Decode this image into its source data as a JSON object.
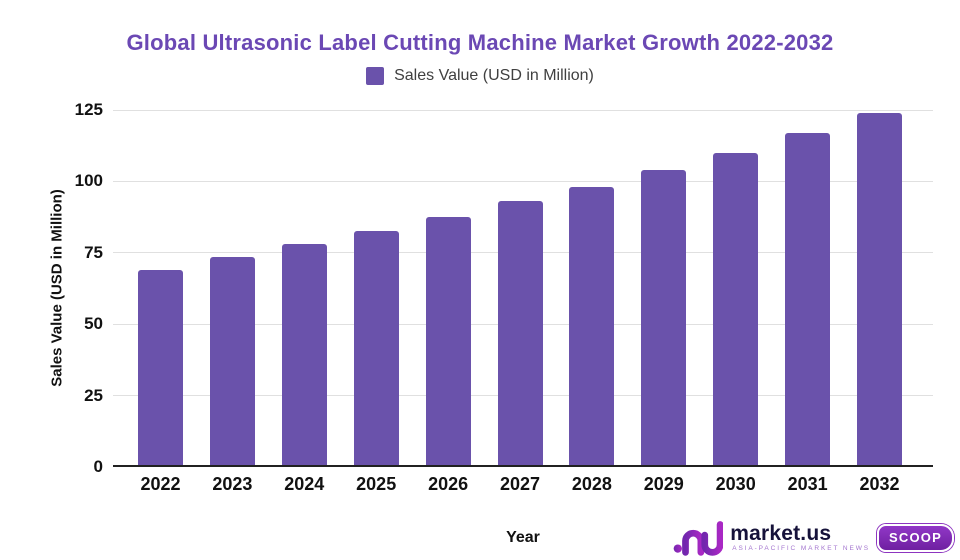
{
  "title": "Global Ultrasonic Label Cutting Machine Market Growth 2022-2032",
  "legend": {
    "label": "Sales Value (USD in Million)"
  },
  "axes": {
    "x_title": "Year",
    "y_title": "Sales Value (USD in Million)"
  },
  "chart_data": {
    "type": "bar",
    "title": "Global Ultrasonic Label Cutting Machine Market Growth 2022-2032",
    "categories": [
      "2022",
      "2023",
      "2024",
      "2025",
      "2026",
      "2027",
      "2028",
      "2029",
      "2030",
      "2031",
      "2032"
    ],
    "series": [
      {
        "name": "Sales Value (USD in Million)",
        "values": [
          69,
          73.5,
          78,
          82.5,
          87.5,
          93,
          98,
          104,
          110,
          117,
          124
        ]
      }
    ],
    "xlabel": "Year",
    "ylabel": "Sales Value (USD in Million)",
    "ylim": [
      0,
      125
    ],
    "yticks": [
      0,
      25,
      50,
      75,
      100,
      125
    ],
    "grid": true,
    "legend_position": "top"
  },
  "colors": {
    "bar": "#6a52ab",
    "title": "#6b48b4",
    "grid": "#e0e0e0",
    "axis_line": "#212121",
    "tick_text": "#111111"
  },
  "branding": {
    "name": "market.us",
    "tagline": "ASIA-PACIFIC MARKET NEWS",
    "badge": "SCOOP"
  }
}
